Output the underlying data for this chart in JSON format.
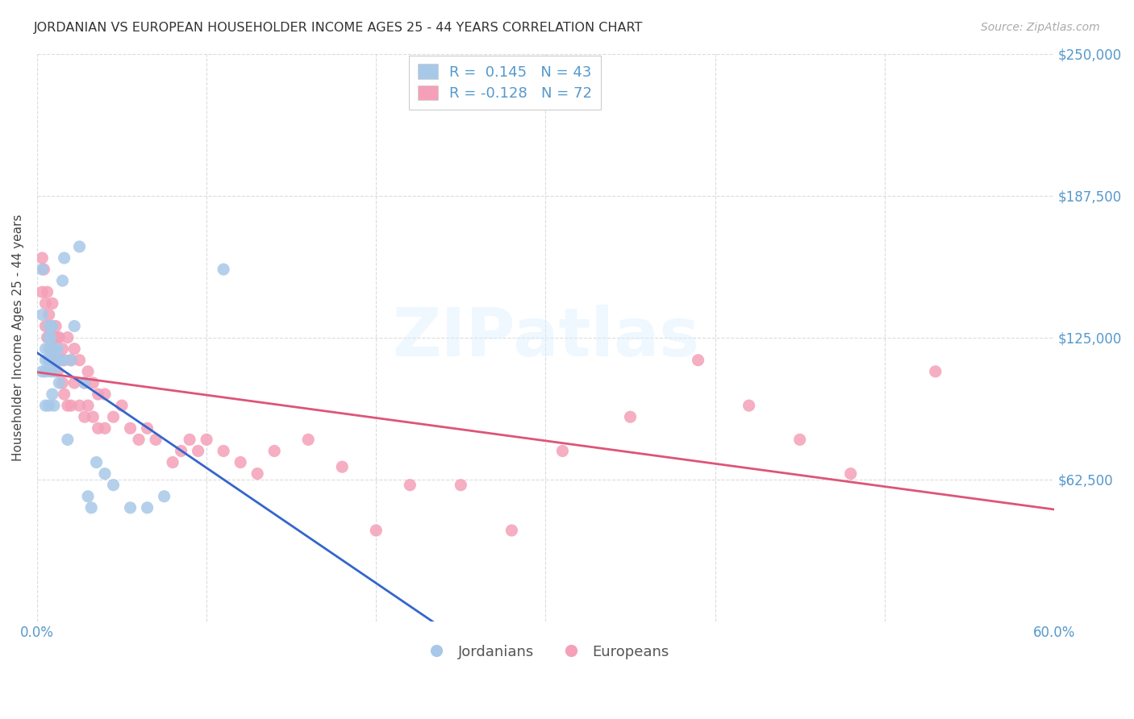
{
  "title": "JORDANIAN VS EUROPEAN HOUSEHOLDER INCOME AGES 25 - 44 YEARS CORRELATION CHART",
  "source": "Source: ZipAtlas.com",
  "ylabel": "Householder Income Ages 25 - 44 years",
  "xlim": [
    0.0,
    0.6
  ],
  "ylim": [
    0,
    250000
  ],
  "yticks": [
    0,
    62500,
    125000,
    187500,
    250000
  ],
  "ytick_labels": [
    "",
    "$62,500",
    "$125,000",
    "$187,500",
    "$250,000"
  ],
  "xticks": [
    0.0,
    0.1,
    0.2,
    0.3,
    0.4,
    0.5,
    0.6
  ],
  "xtick_labels": [
    "0.0%",
    "",
    "",
    "",
    "",
    "",
    "60.0%"
  ],
  "R_jordanian": 0.145,
  "N_jordanian": 43,
  "R_european": -0.128,
  "N_european": 72,
  "jordanian_color": "#a8c8e8",
  "european_color": "#f4a0b8",
  "trend_jordanian_solid_color": "#3366cc",
  "trend_jordanian_dash_color": "#88aadd",
  "trend_european_color": "#dd5577",
  "axis_label_color": "#5599cc",
  "background_color": "#ffffff",
  "grid_color": "#cccccc",
  "watermark": "ZIPatlas",
  "jordanians_x": [
    0.003,
    0.003,
    0.003,
    0.005,
    0.005,
    0.005,
    0.005,
    0.007,
    0.007,
    0.007,
    0.007,
    0.007,
    0.008,
    0.008,
    0.008,
    0.009,
    0.009,
    0.009,
    0.009,
    0.01,
    0.01,
    0.01,
    0.012,
    0.012,
    0.013,
    0.013,
    0.015,
    0.015,
    0.016,
    0.018,
    0.02,
    0.022,
    0.025,
    0.028,
    0.03,
    0.032,
    0.035,
    0.04,
    0.045,
    0.055,
    0.065,
    0.075,
    0.11
  ],
  "jordanians_y": [
    155000,
    135000,
    110000,
    120000,
    115000,
    110000,
    95000,
    130000,
    125000,
    120000,
    115000,
    95000,
    125000,
    120000,
    110000,
    130000,
    120000,
    115000,
    100000,
    120000,
    110000,
    95000,
    120000,
    115000,
    115000,
    105000,
    150000,
    115000,
    160000,
    80000,
    115000,
    130000,
    165000,
    105000,
    55000,
    50000,
    70000,
    65000,
    60000,
    50000,
    50000,
    55000,
    155000
  ],
  "europeans_x": [
    0.003,
    0.003,
    0.004,
    0.005,
    0.005,
    0.006,
    0.006,
    0.007,
    0.007,
    0.007,
    0.008,
    0.008,
    0.009,
    0.009,
    0.01,
    0.01,
    0.011,
    0.011,
    0.012,
    0.012,
    0.013,
    0.013,
    0.015,
    0.015,
    0.016,
    0.016,
    0.018,
    0.018,
    0.02,
    0.02,
    0.022,
    0.022,
    0.025,
    0.025,
    0.028,
    0.028,
    0.03,
    0.03,
    0.033,
    0.033,
    0.036,
    0.036,
    0.04,
    0.04,
    0.045,
    0.05,
    0.055,
    0.06,
    0.065,
    0.07,
    0.08,
    0.085,
    0.09,
    0.095,
    0.1,
    0.11,
    0.12,
    0.13,
    0.14,
    0.16,
    0.18,
    0.2,
    0.22,
    0.25,
    0.28,
    0.31,
    0.35,
    0.39,
    0.42,
    0.45,
    0.48,
    0.53
  ],
  "europeans_y": [
    160000,
    145000,
    155000,
    140000,
    130000,
    145000,
    125000,
    135000,
    125000,
    115000,
    130000,
    115000,
    140000,
    120000,
    125000,
    115000,
    130000,
    115000,
    125000,
    110000,
    125000,
    115000,
    120000,
    105000,
    115000,
    100000,
    125000,
    95000,
    115000,
    95000,
    120000,
    105000,
    115000,
    95000,
    105000,
    90000,
    110000,
    95000,
    105000,
    90000,
    100000,
    85000,
    100000,
    85000,
    90000,
    95000,
    85000,
    80000,
    85000,
    80000,
    70000,
    75000,
    80000,
    75000,
    80000,
    75000,
    70000,
    65000,
    75000,
    80000,
    68000,
    40000,
    60000,
    60000,
    40000,
    75000,
    90000,
    115000,
    95000,
    80000,
    65000,
    110000
  ]
}
